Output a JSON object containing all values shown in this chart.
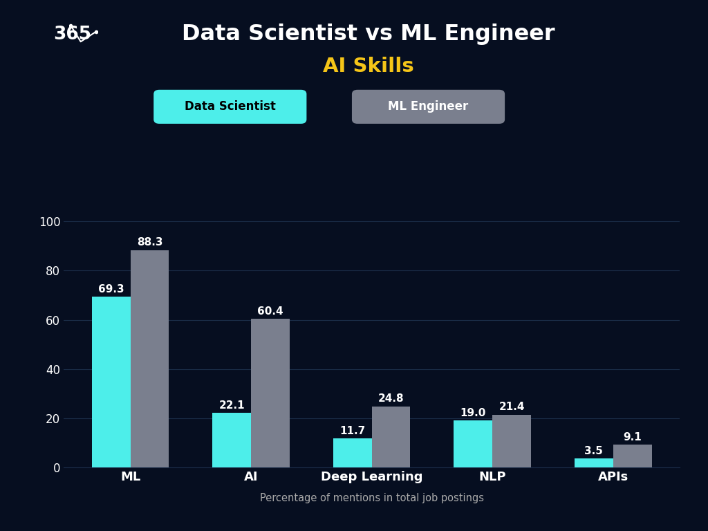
{
  "title_line1": "Data Scientist vs ML Engineer",
  "title_line2": "AI Skills",
  "subtitle": "Percentage of mentions in total job postings",
  "categories": [
    "ML",
    "AI",
    "Deep Learning",
    "NLP",
    "APIs"
  ],
  "data_scientist": [
    69.3,
    22.1,
    11.7,
    19.0,
    3.5
  ],
  "ml_engineer": [
    88.3,
    60.4,
    24.8,
    21.4,
    9.1
  ],
  "ds_color": "#4DEEEA",
  "mle_color": "#7A7F8E",
  "background_color": "#060E20",
  "grid_color": "#1A2C47",
  "text_color": "#FFFFFF",
  "title_color": "#FFFFFF",
  "gold_color": "#F5C518",
  "yticks": [
    0,
    20,
    40,
    60,
    80,
    100
  ],
  "ylim": [
    0,
    108
  ],
  "bar_width": 0.32,
  "legend_ds_label": "Data Scientist",
  "legend_mle_label": "ML Engineer",
  "xlabel_color": "#AAAAAA",
  "value_fontsize": 11,
  "xtick_fontsize": 13,
  "ytick_fontsize": 12
}
